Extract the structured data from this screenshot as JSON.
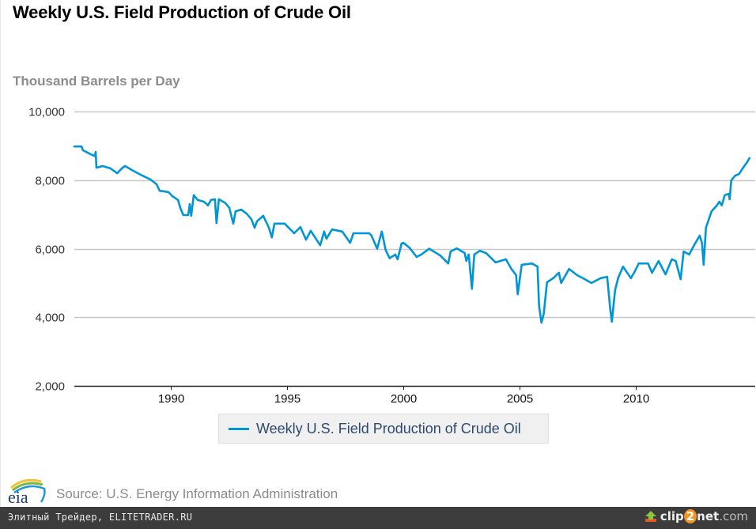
{
  "header": {
    "title": "Weekly U.S. Field Production of Crude Oil",
    "units_label": "Thousand Barrels per Day"
  },
  "legend": {
    "label": "Weekly U.S. Field Production of Crude Oil",
    "color": "#0096d6"
  },
  "footer": {
    "logo_text": "eia",
    "source": "Source: U.S. Energy Information Administration"
  },
  "bottom_bar": {
    "watermark": "Элитный Трейдер, ELITETRADER.RU",
    "clip2net_brand_a": "clip",
    "clip2net_brand_b": "2",
    "clip2net_brand_c": "net",
    "clip2net_domain": ".com"
  },
  "chart_data": {
    "type": "line",
    "title": "Weekly U.S. Field Production of Crude Oil",
    "xlabel": "",
    "ylabel": "Thousand Barrels per Day",
    "xlim": [
      1985.85,
      2015.15
    ],
    "ylim": [
      2000,
      10000
    ],
    "grid": true,
    "legend_position": "bottom-center",
    "y_ticks": [
      {
        "value": 10000,
        "label": "10,000"
      },
      {
        "value": 8000,
        "label": "8,000"
      },
      {
        "value": 6000,
        "label": "6,000"
      },
      {
        "value": 4000,
        "label": "4,000"
      },
      {
        "value": 2000,
        "label": "2,000"
      }
    ],
    "x_ticks": [
      {
        "value": 1990,
        "label": "1990"
      },
      {
        "value": 1995,
        "label": "1995"
      },
      {
        "value": 2000,
        "label": "2000"
      },
      {
        "value": 2005,
        "label": "2005"
      },
      {
        "value": 2010,
        "label": "2010"
      }
    ],
    "series": [
      {
        "name": "Weekly U.S. Field Production of Crude Oil",
        "color": "#0096d6",
        "x": [
          1985.85,
          1986.16,
          1986.22,
          1986.56,
          1986.73,
          1986.77,
          1986.8,
          1987.07,
          1987.41,
          1987.69,
          1987.93,
          1988.03,
          1988.44,
          1988.78,
          1989.12,
          1989.39,
          1989.52,
          1989.9,
          1990.07,
          1990.31,
          1990.41,
          1990.54,
          1990.75,
          1990.82,
          1990.88,
          1990.99,
          1991.16,
          1991.43,
          1991.6,
          1991.73,
          1991.9,
          1991.97,
          1992.07,
          1992.35,
          1992.52,
          1992.69,
          1992.79,
          1993.03,
          1993.27,
          1993.47,
          1993.61,
          1993.71,
          1993.98,
          1994.22,
          1994.35,
          1994.46,
          1994.9,
          1995.31,
          1995.58,
          1995.82,
          1996.02,
          1996.43,
          1996.6,
          1996.7,
          1996.94,
          1997.38,
          1997.72,
          1997.86,
          1998.54,
          1998.64,
          1998.88,
          1999.08,
          1999.25,
          1999.42,
          1999.66,
          1999.76,
          1999.93,
          2000.01,
          2000.27,
          2000.58,
          2000.78,
          2001.12,
          2001.6,
          2001.94,
          2002.04,
          2002.31,
          2002.65,
          2002.72,
          2002.82,
          2002.96,
          2003.06,
          2003.3,
          2003.57,
          2003.98,
          2004.42,
          2004.66,
          2004.86,
          2004.93,
          2005.1,
          2005.54,
          2005.78,
          2005.85,
          2005.95,
          2006.05,
          2006.19,
          2006.46,
          2006.7,
          2006.8,
          2007.14,
          2007.48,
          2007.82,
          2008.1,
          2008.5,
          2008.78,
          2008.91,
          2008.98,
          2009.12,
          2009.25,
          2009.46,
          2009.8,
          2009.97,
          2010.14,
          2010.54,
          2010.71,
          2010.99,
          2011.29,
          2011.56,
          2011.73,
          2011.94,
          2012.07,
          2012.31,
          2012.52,
          2012.76,
          2012.86,
          2012.93,
          2013.03,
          2013.27,
          2013.5,
          2013.61,
          2013.71,
          2013.84,
          2014.01,
          2014.05,
          2014.12,
          2014.29,
          2014.46,
          2014.63,
          2014.8,
          2014.9
        ],
        "y": [
          8980,
          8980,
          8870,
          8750,
          8700,
          8820,
          8360,
          8410,
          8340,
          8200,
          8360,
          8410,
          8250,
          8130,
          8020,
          7880,
          7690,
          7650,
          7530,
          7420,
          7190,
          6980,
          6980,
          7300,
          6960,
          7560,
          7420,
          7370,
          7260,
          7420,
          7440,
          6750,
          7440,
          7330,
          7190,
          6730,
          7090,
          7140,
          7020,
          6860,
          6610,
          6800,
          6960,
          6610,
          6330,
          6730,
          6730,
          6450,
          6630,
          6260,
          6520,
          6100,
          6500,
          6290,
          6560,
          6500,
          6170,
          6450,
          6450,
          6380,
          6000,
          6500,
          5950,
          5720,
          5830,
          5690,
          6150,
          6170,
          6030,
          5760,
          5830,
          6000,
          5800,
          5570,
          5920,
          6010,
          5870,
          5640,
          5830,
          4830,
          5830,
          5940,
          5870,
          5600,
          5690,
          5410,
          5230,
          4670,
          5530,
          5570,
          5480,
          4330,
          3840,
          4100,
          5020,
          5140,
          5300,
          5000,
          5410,
          5230,
          5110,
          5000,
          5140,
          5180,
          4260,
          3870,
          4790,
          5140,
          5480,
          5140,
          5340,
          5570,
          5570,
          5300,
          5640,
          5250,
          5690,
          5640,
          5110,
          5920,
          5830,
          6100,
          6380,
          6170,
          5530,
          6610,
          7090,
          7260,
          7370,
          7260,
          7560,
          7600,
          7440,
          7990,
          8130,
          8180,
          8360,
          8520,
          8640
        ]
      }
    ]
  }
}
